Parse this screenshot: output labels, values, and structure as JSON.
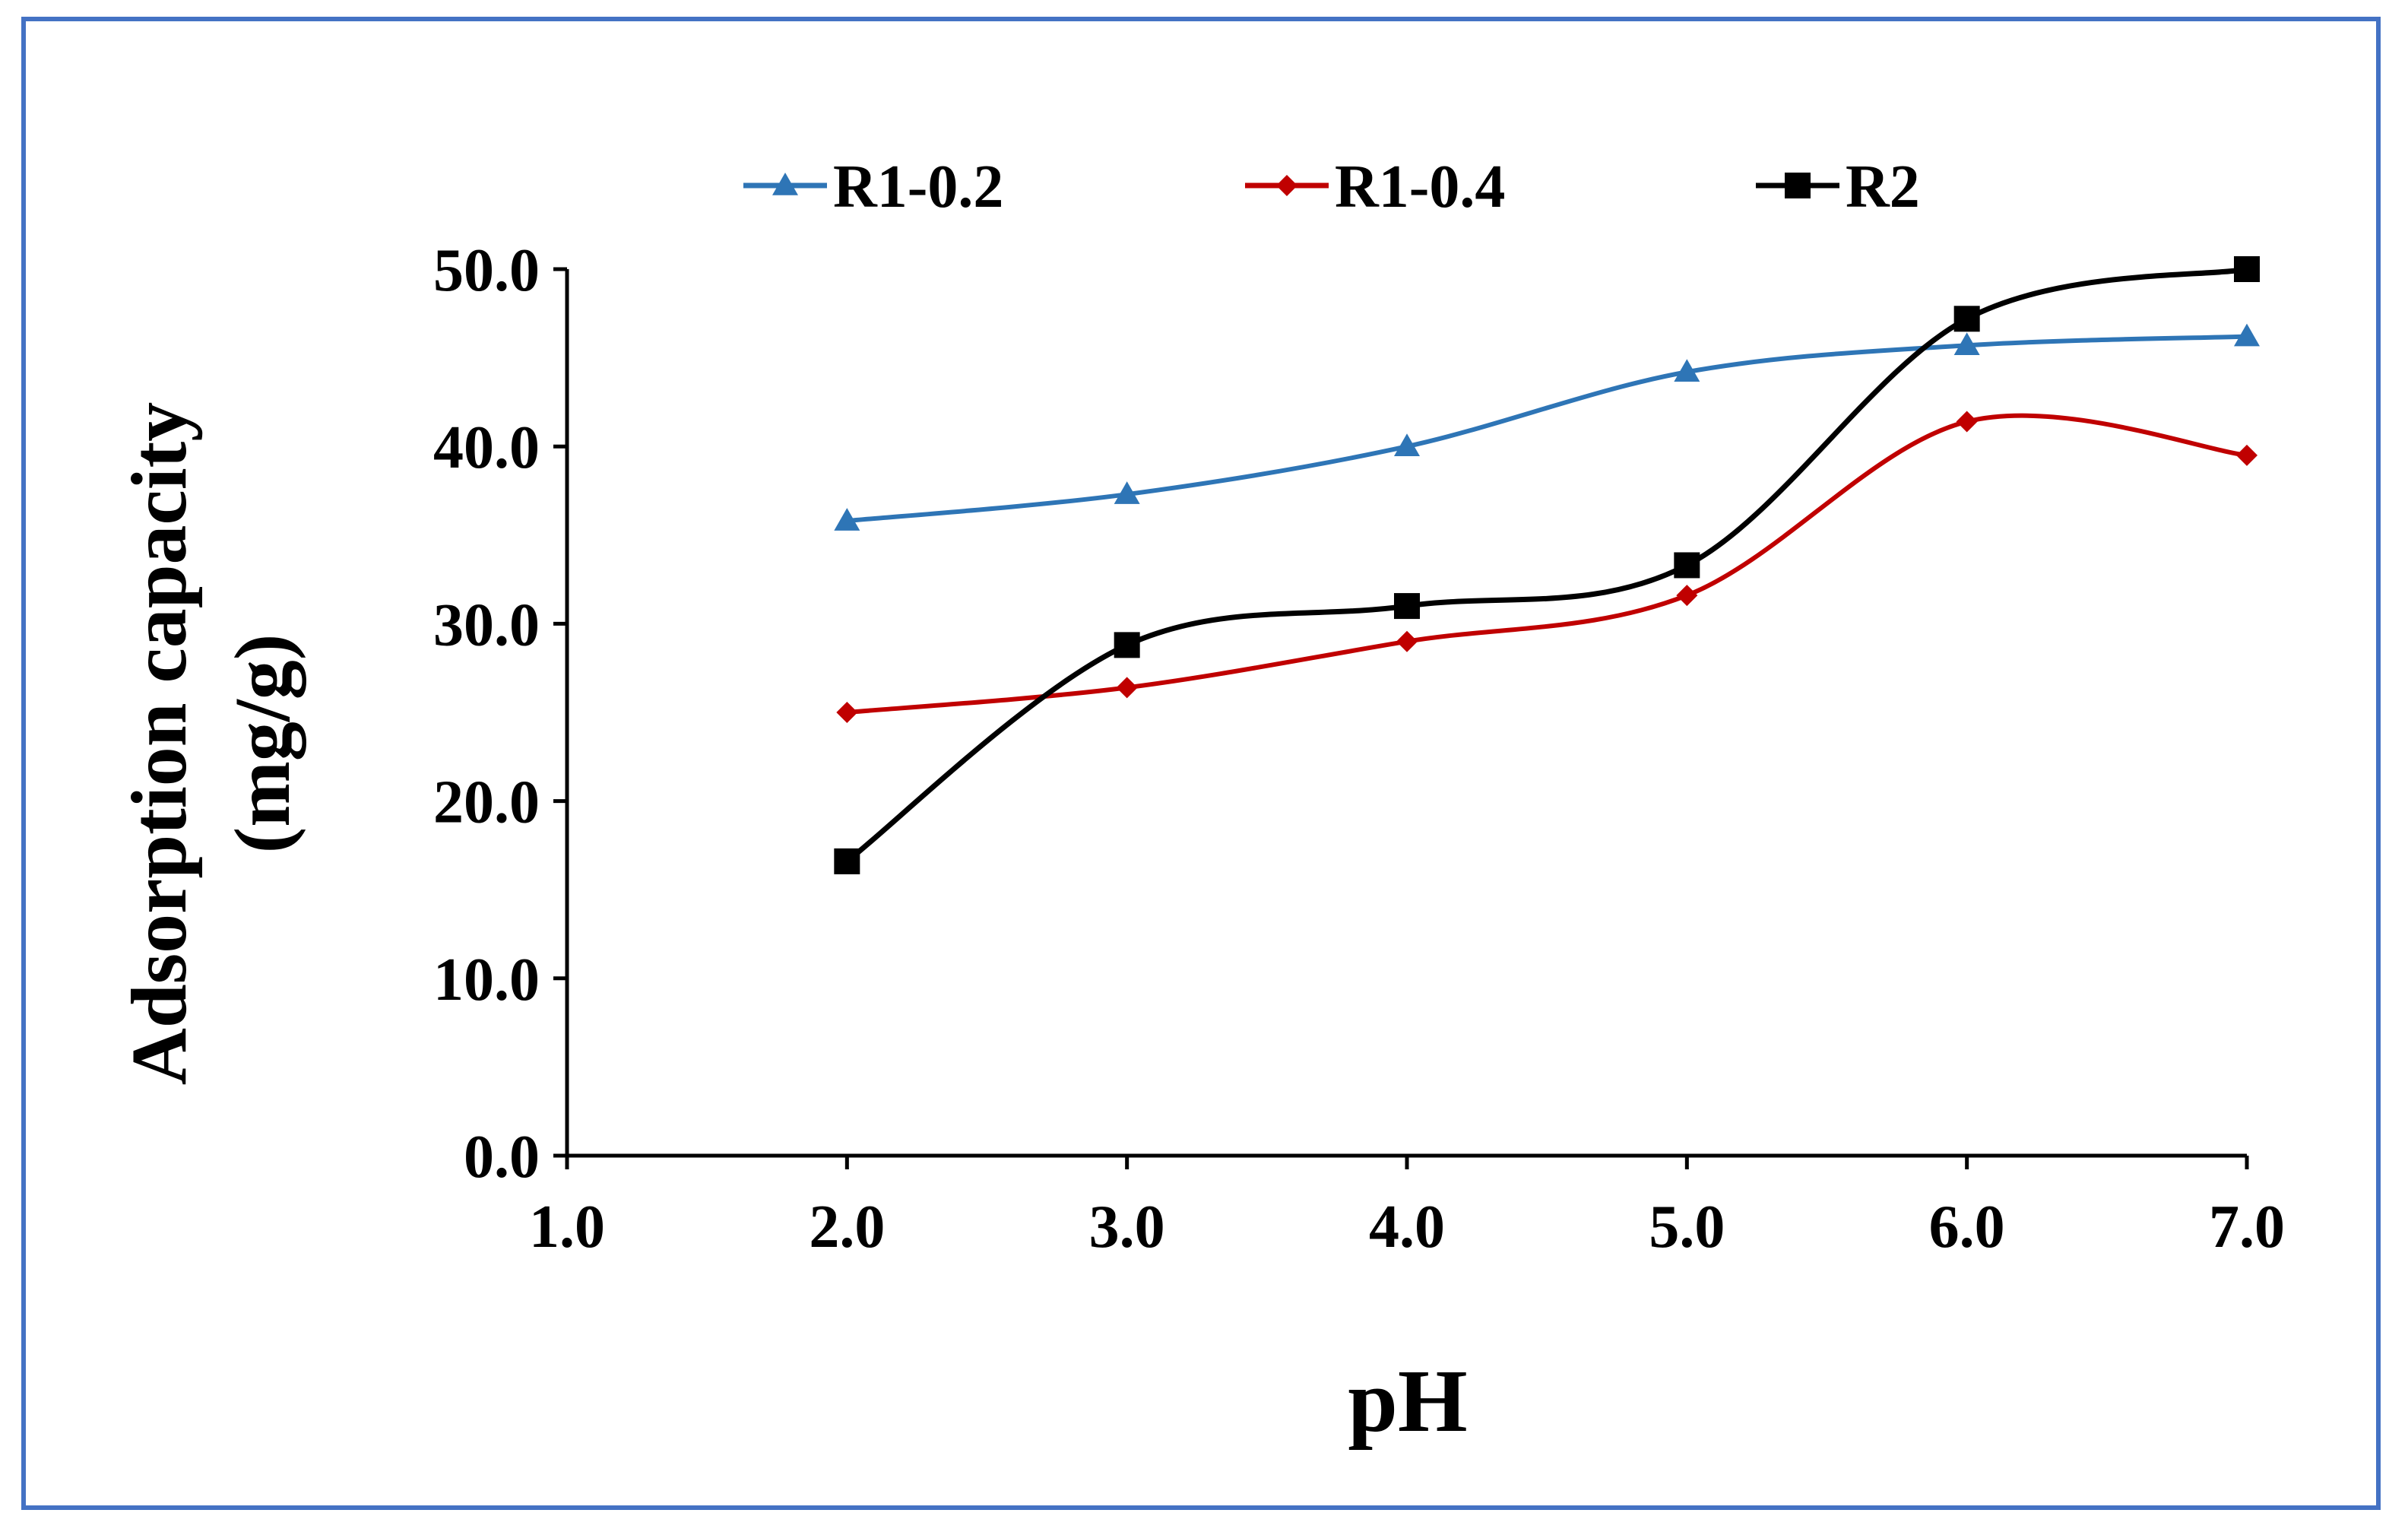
{
  "chart_data": {
    "type": "line",
    "smooth": true,
    "title": "",
    "xlabel": "pH",
    "ylabel_line1": "Adsorption capacity",
    "ylabel_line2": "(mg/g)",
    "xlim": [
      1.0,
      7.0
    ],
    "ylim": [
      0.0,
      50.0
    ],
    "x_ticks": [
      "1.0",
      "2.0",
      "3.0",
      "4.0",
      "5.0",
      "6.0",
      "7.0"
    ],
    "x_tick_values": [
      1,
      2,
      3,
      4,
      5,
      6,
      7
    ],
    "y_ticks": [
      "0.0",
      "10.0",
      "20.0",
      "30.0",
      "40.0",
      "50.0"
    ],
    "y_tick_values": [
      0,
      10,
      20,
      30,
      40,
      50
    ],
    "grid": false,
    "legend_position": "top",
    "x": [
      2,
      3,
      4,
      5,
      6,
      7
    ],
    "series": [
      {
        "name": "R1-0.2",
        "color": "#2E75B6",
        "marker": "triangle",
        "values": [
          35.8,
          37.3,
          40.0,
          44.2,
          45.7,
          46.2
        ]
      },
      {
        "name": "R1-0.4",
        "color": "#C00000",
        "marker": "diamond",
        "values": [
          25.0,
          26.4,
          29.0,
          31.6,
          41.4,
          39.5
        ]
      },
      {
        "name": "R2",
        "color": "#000000",
        "marker": "square",
        "values": [
          16.6,
          28.8,
          31.0,
          33.3,
          47.2,
          50.0
        ]
      }
    ]
  }
}
